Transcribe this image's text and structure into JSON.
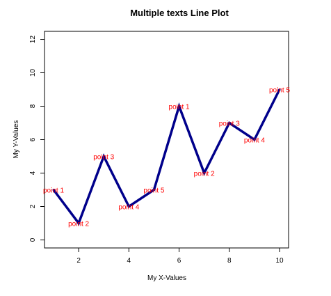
{
  "chart_data": {
    "type": "line",
    "title": "Multiple texts Line Plot",
    "xlabel": "My X-Values",
    "ylabel": "My Y-Values",
    "x": [
      1,
      2,
      3,
      4,
      5,
      6,
      7,
      8,
      9,
      10
    ],
    "series": [
      {
        "values": [
          3,
          1,
          5,
          2,
          3,
          8,
          4,
          7,
          6,
          9
        ],
        "color": "#00008B"
      }
    ],
    "point_labels": [
      "point 1",
      "point 2",
      "point 3",
      "point 4",
      "point 5",
      "point 1",
      "point 2",
      "point 3",
      "point 4",
      "point 5"
    ],
    "point_label_color": "#ff0000",
    "xlim": [
      0.64,
      10.36
    ],
    "ylim": [
      -0.48,
      12.48
    ],
    "x_ticks": [
      2,
      4,
      6,
      8,
      10
    ],
    "y_ticks": [
      0,
      2,
      4,
      6,
      8,
      10,
      12
    ],
    "x_tick_labels": [
      "2",
      "4",
      "6",
      "8",
      "10"
    ],
    "y_tick_labels": [
      "0",
      "2",
      "4",
      "6",
      "8",
      "10",
      "12"
    ],
    "grid": false,
    "legend": "none"
  }
}
